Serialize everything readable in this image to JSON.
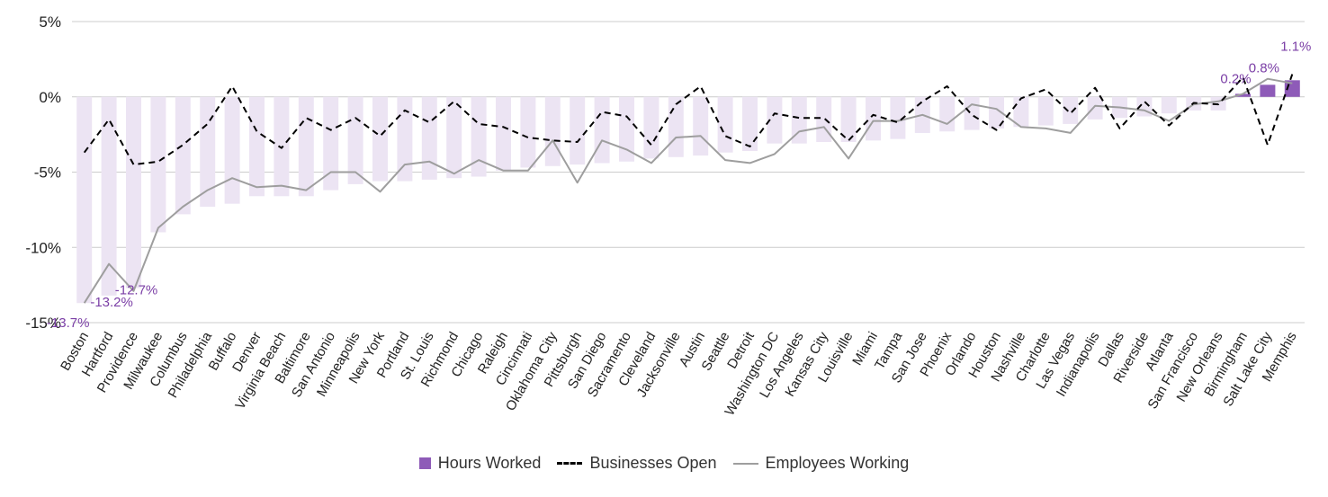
{
  "chart_data": {
    "type": "bar",
    "categories": [
      "Boston",
      "Hartford",
      "Providence",
      "Milwaukee",
      "Columbus",
      "Philadelphia",
      "Buffalo",
      "Denver",
      "Virginia Beach",
      "Baltimore",
      "San Antonio",
      "Minneapolis",
      "New York",
      "Portland",
      "St. Louis",
      "Richmond",
      "Chicago",
      "Raleigh",
      "Cincinnati",
      "Oklahoma City",
      "Pittsburgh",
      "San Diego",
      "Sacramento",
      "Cleveland",
      "Jacksonville",
      "Austin",
      "Seattle",
      "Detroit",
      "Washington DC",
      "Los Angeles",
      "Kansas City",
      "Louisville",
      "Miami",
      "Tampa",
      "San Jose",
      "Phoenix",
      "Orlando",
      "Houston",
      "Nashville",
      "Charlotte",
      "Las Vegas",
      "Indianapolis",
      "Dallas",
      "Riverside",
      "Atlanta",
      "San Francisco",
      "New Orleans",
      "Birmingham",
      "Salt Lake City",
      "Memphis"
    ],
    "series": [
      {
        "name": "Hours Worked",
        "style": "bar",
        "values": [
          -13.7,
          -13.2,
          -12.7,
          -9.0,
          -7.8,
          -7.3,
          -7.1,
          -6.6,
          -6.6,
          -6.6,
          -6.2,
          -5.8,
          -5.6,
          -5.6,
          -5.5,
          -5.4,
          -5.3,
          -4.9,
          -4.7,
          -4.6,
          -4.5,
          -4.4,
          -4.3,
          -4.1,
          -4.0,
          -3.9,
          -3.7,
          -3.6,
          -3.1,
          -3.1,
          -3.0,
          -3.0,
          -2.9,
          -2.8,
          -2.4,
          -2.3,
          -2.2,
          -2.1,
          -2.0,
          -1.9,
          -1.8,
          -1.5,
          -1.4,
          -1.3,
          -1.1,
          -0.9,
          -0.9,
          0.2,
          0.8,
          1.1
        ]
      },
      {
        "name": "Businesses Open",
        "style": "dashed-line",
        "values": [
          -3.7,
          -1.5,
          -4.5,
          -4.3,
          -3.2,
          -1.8,
          0.7,
          -2.3,
          -3.4,
          -1.4,
          -2.2,
          -1.4,
          -2.6,
          -0.9,
          -1.7,
          -0.3,
          -1.8,
          -2.0,
          -2.7,
          -2.9,
          -3.0,
          -1.0,
          -1.3,
          -3.2,
          -0.5,
          0.7,
          -2.6,
          -3.3,
          -1.1,
          -1.4,
          -1.4,
          -2.9,
          -1.2,
          -1.7,
          -0.3,
          0.7,
          -1.2,
          -2.2,
          -0.1,
          0.5,
          -1.1,
          0.6,
          -2.1,
          -0.3,
          -1.9,
          -0.4,
          -0.5,
          1.3,
          -3.2,
          1.5
        ]
      },
      {
        "name": "Employees Working",
        "style": "line",
        "values": [
          -13.7,
          -11.1,
          -12.9,
          -8.7,
          -7.3,
          -6.2,
          -5.4,
          -6.0,
          -5.9,
          -6.2,
          -5.0,
          -5.0,
          -6.3,
          -4.5,
          -4.3,
          -5.1,
          -4.2,
          -4.9,
          -4.9,
          -2.9,
          -5.7,
          -2.9,
          -3.5,
          -4.4,
          -2.7,
          -2.6,
          -4.2,
          -4.4,
          -3.8,
          -2.3,
          -2.0,
          -4.1,
          -1.6,
          -1.6,
          -1.2,
          -1.8,
          -0.5,
          -0.8,
          -2.0,
          -2.1,
          -2.4,
          -0.6,
          -0.7,
          -0.9,
          -1.6,
          -0.5,
          -0.3,
          0.2,
          1.2,
          0.9
        ]
      }
    ],
    "data_labels": [
      {
        "category": "Boston",
        "text": "-13.7%"
      },
      {
        "category": "Hartford",
        "text": "-13.2%"
      },
      {
        "category": "Providence",
        "text": "-12.7%"
      },
      {
        "category": "Birmingham",
        "text": "0.2%"
      },
      {
        "category": "Salt Lake City",
        "text": "0.8%"
      },
      {
        "category": "Memphis",
        "text": "1.1%"
      }
    ],
    "y_ticks": [
      {
        "value": 5,
        "label": "5%"
      },
      {
        "value": 0,
        "label": "0%"
      },
      {
        "value": -5,
        "label": "-5%"
      },
      {
        "value": -10,
        "label": "-10%"
      },
      {
        "value": -15,
        "label": "-15%"
      }
    ],
    "ylim": [
      -15,
      5
    ],
    "grid": true,
    "legend_position": "bottom-center",
    "colors": {
      "bar_negative": "#ECE4F3",
      "bar_positive": "#8E5BB8",
      "businesses_open": "#000000",
      "employees_working": "#9E9E9E",
      "label_text": "#7B3FA6",
      "grid": "#CCCCCC"
    }
  }
}
